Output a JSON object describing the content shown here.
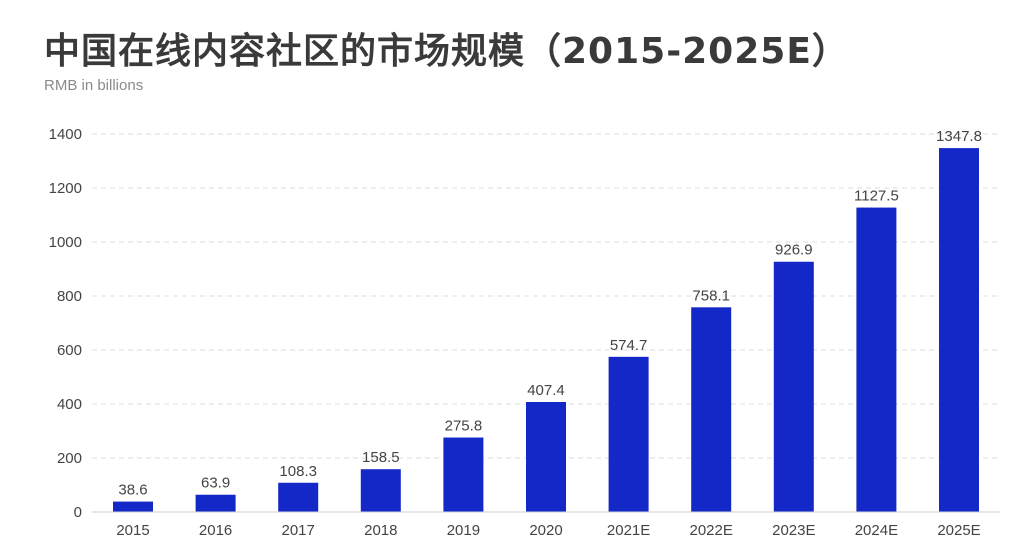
{
  "chart_data": {
    "type": "bar",
    "title": "中国在线内容社区的市场规模（2015-2025E）",
    "subtitle": "RMB in billions",
    "xlabel": "",
    "ylabel": "",
    "categories": [
      "2015",
      "2016",
      "2017",
      "2018",
      "2019",
      "2020",
      "2021E",
      "2022E",
      "2023E",
      "2024E",
      "2025E"
    ],
    "values": [
      38.6,
      63.9,
      108.3,
      158.5,
      275.8,
      407.4,
      574.7,
      758.1,
      926.9,
      1127.5,
      1347.8
    ],
    "value_labels": [
      "38.6",
      "63.9",
      "108.3",
      "158.5",
      "275.8",
      "407.4",
      "574.7",
      "758.1",
      "926.9",
      "1127.5",
      "1347.8"
    ],
    "ylim": [
      0,
      1400
    ],
    "yticks": [
      "0",
      "200",
      "400",
      "600",
      "800",
      "1000",
      "1200",
      "1400"
    ],
    "grid": true,
    "bar_color": "#1428c8"
  }
}
